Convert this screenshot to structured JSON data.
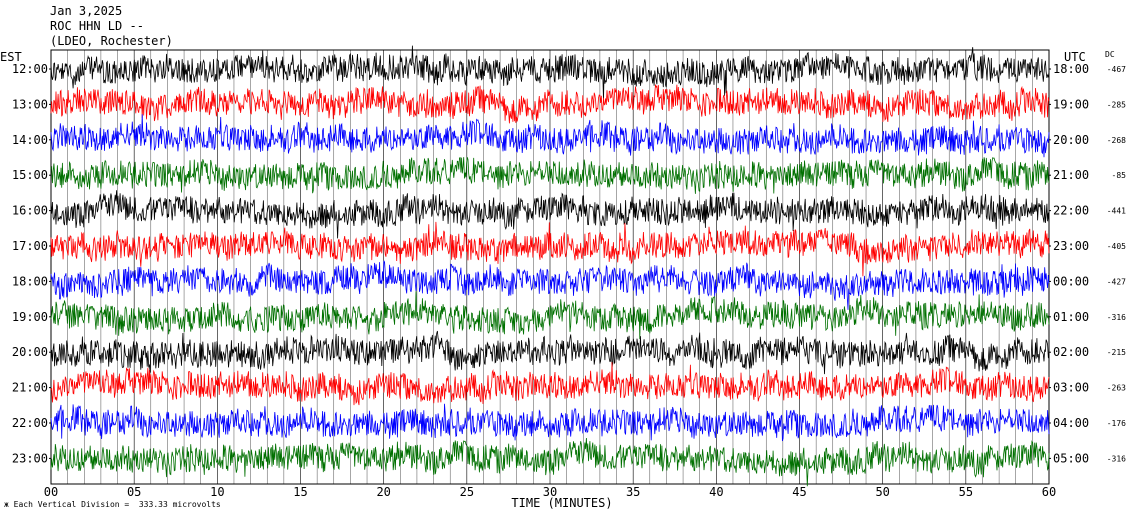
{
  "header": {
    "date": "Jan 3,2025",
    "station": "ROC HHN LD --",
    "network": "(LDEO, Rochester)"
  },
  "footer": {
    "scale_text": "Each Vertical Division =  333.33 microvolts"
  },
  "chart_data": {
    "type": "line",
    "chart_kind": "helicorder",
    "left_axis_label": "EST",
    "right_axis_label": "UTC",
    "dc_label": "DC",
    "xlabel": "TIME (MINUTES)",
    "xlim": [
      0,
      60
    ],
    "x_ticks": [
      "00",
      "05",
      "10",
      "15",
      "20",
      "25",
      "30",
      "35",
      "40",
      "45",
      "50",
      "55",
      "60"
    ],
    "grid": true,
    "colors": [
      "#000000",
      "#ff0000",
      "#0000ff",
      "#007000"
    ],
    "rows": [
      {
        "est": "12:00",
        "utc": "18:00",
        "dc": "-467"
      },
      {
        "est": "13:00",
        "utc": "19:00",
        "dc": "-285"
      },
      {
        "est": "14:00",
        "utc": "20:00",
        "dc": "-268"
      },
      {
        "est": "15:00",
        "utc": "21:00",
        "dc": "-85"
      },
      {
        "est": "16:00",
        "utc": "22:00",
        "dc": "-441"
      },
      {
        "est": "17:00",
        "utc": "23:00",
        "dc": "-405"
      },
      {
        "est": "18:00",
        "utc": "00:00",
        "dc": "-427"
      },
      {
        "est": "19:00",
        "utc": "01:00",
        "dc": "-316"
      },
      {
        "est": "20:00",
        "utc": "02:00",
        "dc": "-215"
      },
      {
        "est": "21:00",
        "utc": "03:00",
        "dc": "-263"
      },
      {
        "est": "22:00",
        "utc": "04:00",
        "dc": "-176"
      },
      {
        "est": "23:00",
        "utc": "05:00",
        "dc": "-316"
      }
    ]
  }
}
